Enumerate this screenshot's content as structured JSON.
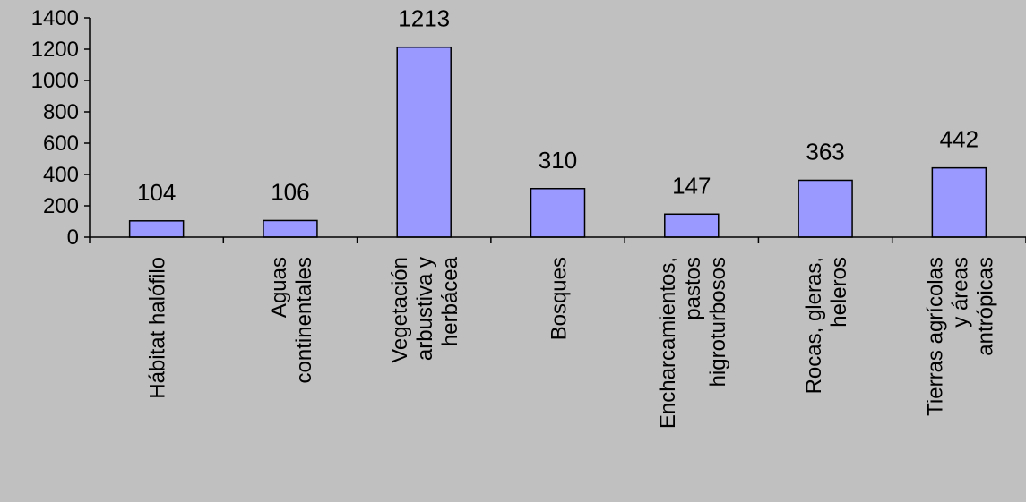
{
  "colors": {
    "background": "#c0c0c0",
    "bar_fill": "#9999ff",
    "bar_stroke": "#000000"
  },
  "chart_data": {
    "type": "bar",
    "title": "",
    "xlabel": "",
    "ylabel": "",
    "ylim": [
      0,
      1400
    ],
    "yticks": [
      "0",
      "200",
      "400",
      "600",
      "800",
      "1000",
      "1200",
      "1400"
    ],
    "grid": false,
    "categories": [
      [
        "Hábitat halófilo"
      ],
      [
        "Aguas",
        "continentales"
      ],
      [
        "Vegetación",
        "arbustiva y",
        "herbácea"
      ],
      [
        "Bosques"
      ],
      [
        "Encharcamientos,",
        "pastos",
        "higroturbosos"
      ],
      [
        "Rocas, gleras,",
        "heleros"
      ],
      [
        "Tierras agrícolas",
        "y áreas",
        "antrópicas"
      ]
    ],
    "values": [
      104,
      106,
      1213,
      310,
      147,
      363,
      442
    ],
    "data_labels": [
      "104",
      "106",
      "1213",
      "310",
      "147",
      "363",
      "442"
    ]
  }
}
